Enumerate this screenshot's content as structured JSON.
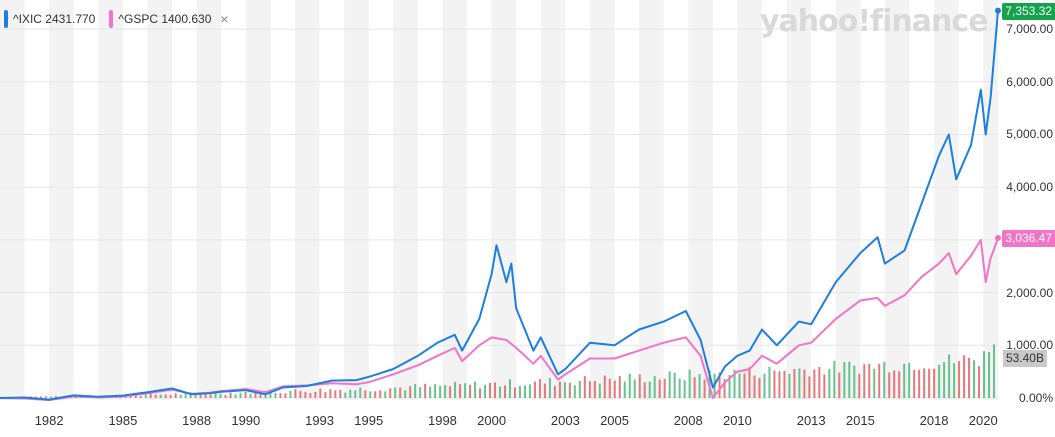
{
  "legend": [
    {
      "label": "^IXIC 2431.770",
      "color": "#1c7fe0"
    },
    {
      "label": "^GSPC 1400.630",
      "color": "#f274c8"
    }
  ],
  "legend_close": "×",
  "watermark": "yahoo!finance",
  "last_values": {
    "ixic": {
      "text": "7,353.32",
      "color": "#14a34a"
    },
    "gspc": {
      "text": "3,036.47",
      "color": "#f274c8"
    },
    "volume": {
      "text": "53.40B"
    }
  },
  "chart_data": {
    "type": "line",
    "ylim": [
      0,
      7400
    ],
    "xlim": [
      1980.0,
      2020.6
    ],
    "y_ticks": [
      "7,000.00",
      "6,000.00",
      "5,000.00",
      "4,000.00",
      "3,000.00",
      "2,000.00",
      "1,000.00",
      "0.00%"
    ],
    "y_tick_values": [
      7000,
      6000,
      5000,
      4000,
      3000,
      2000,
      1000,
      0
    ],
    "x_ticks": [
      {
        "label": "1982",
        "x": 1982
      },
      {
        "label": "1985",
        "x": 1985
      },
      {
        "label": "1988",
        "x": 1988
      },
      {
        "label": "1990",
        "x": 1990
      },
      {
        "label": "1993",
        "x": 1993
      },
      {
        "label": "1995",
        "x": 1995
      },
      {
        "label": "1998",
        "x": 1998
      },
      {
        "label": "2000",
        "x": 2000
      },
      {
        "label": "2003",
        "x": 2003
      },
      {
        "label": "2005",
        "x": 2005
      },
      {
        "label": "2008",
        "x": 2008
      },
      {
        "label": "2010",
        "x": 2010
      },
      {
        "label": "2013",
        "x": 2013
      },
      {
        "label": "2015",
        "x": 2015
      },
      {
        "label": "2018",
        "x": 2018
      },
      {
        "label": "2020",
        "x": 2020
      }
    ],
    "grid": true,
    "series": [
      {
        "name": "^IXIC",
        "color": "#1c7fe0",
        "points": [
          [
            1980.0,
            0
          ],
          [
            1981.0,
            10
          ],
          [
            1982.0,
            -30
          ],
          [
            1983.0,
            50
          ],
          [
            1984.0,
            25
          ],
          [
            1985.0,
            45
          ],
          [
            1986.0,
            110
          ],
          [
            1987.0,
            180
          ],
          [
            1987.8,
            70
          ],
          [
            1988.5,
            90
          ],
          [
            1989.0,
            120
          ],
          [
            1990.0,
            150
          ],
          [
            1990.8,
            70
          ],
          [
            1991.5,
            200
          ],
          [
            1992.5,
            230
          ],
          [
            1993.5,
            330
          ],
          [
            1994.5,
            340
          ],
          [
            1995.0,
            400
          ],
          [
            1996.0,
            550
          ],
          [
            1997.0,
            800
          ],
          [
            1997.8,
            1050
          ],
          [
            1998.5,
            1200
          ],
          [
            1998.8,
            900
          ],
          [
            1999.5,
            1500
          ],
          [
            2000.0,
            2350
          ],
          [
            2000.2,
            2900
          ],
          [
            2000.6,
            2200
          ],
          [
            2000.8,
            2550
          ],
          [
            2001.0,
            1700
          ],
          [
            2001.7,
            900
          ],
          [
            2002.0,
            1150
          ],
          [
            2002.7,
            450
          ],
          [
            2003.0,
            550
          ],
          [
            2004.0,
            1050
          ],
          [
            2005.0,
            1000
          ],
          [
            2006.0,
            1300
          ],
          [
            2007.0,
            1450
          ],
          [
            2007.9,
            1650
          ],
          [
            2008.5,
            1100
          ],
          [
            2009.0,
            200
          ],
          [
            2009.5,
            600
          ],
          [
            2010.0,
            800
          ],
          [
            2010.5,
            900
          ],
          [
            2011.0,
            1300
          ],
          [
            2011.6,
            1000
          ],
          [
            2012.5,
            1450
          ],
          [
            2013.0,
            1400
          ],
          [
            2014.0,
            2200
          ],
          [
            2015.0,
            2750
          ],
          [
            2015.7,
            3050
          ],
          [
            2016.0,
            2550
          ],
          [
            2016.8,
            2800
          ],
          [
            2017.5,
            3700
          ],
          [
            2018.2,
            4600
          ],
          [
            2018.6,
            5000
          ],
          [
            2018.9,
            4150
          ],
          [
            2019.5,
            4800
          ],
          [
            2019.9,
            5850
          ],
          [
            2020.1,
            5000
          ],
          [
            2020.3,
            5700
          ],
          [
            2020.6,
            7350
          ]
        ]
      },
      {
        "name": "^GSPC",
        "color": "#f274c8",
        "points": [
          [
            1980.0,
            0
          ],
          [
            1981.0,
            -10
          ],
          [
            1982.0,
            -40
          ],
          [
            1983.0,
            30
          ],
          [
            1984.0,
            10
          ],
          [
            1985.0,
            30
          ],
          [
            1986.0,
            90
          ],
          [
            1987.0,
            160
          ],
          [
            1987.8,
            80
          ],
          [
            1988.5,
            100
          ],
          [
            1989.0,
            130
          ],
          [
            1990.0,
            170
          ],
          [
            1990.8,
            110
          ],
          [
            1991.5,
            220
          ],
          [
            1992.5,
            240
          ],
          [
            1993.5,
            280
          ],
          [
            1994.5,
            260
          ],
          [
            1995.0,
            300
          ],
          [
            1996.0,
            450
          ],
          [
            1997.0,
            620
          ],
          [
            1997.8,
            800
          ],
          [
            1998.5,
            950
          ],
          [
            1998.8,
            700
          ],
          [
            1999.5,
            1000
          ],
          [
            2000.0,
            1150
          ],
          [
            2000.6,
            1100
          ],
          [
            2001.0,
            950
          ],
          [
            2001.7,
            650
          ],
          [
            2002.0,
            800
          ],
          [
            2002.7,
            350
          ],
          [
            2003.0,
            450
          ],
          [
            2004.0,
            750
          ],
          [
            2005.0,
            750
          ],
          [
            2006.0,
            900
          ],
          [
            2007.0,
            1050
          ],
          [
            2007.9,
            1150
          ],
          [
            2008.5,
            800
          ],
          [
            2009.0,
            0
          ],
          [
            2009.5,
            300
          ],
          [
            2010.0,
            500
          ],
          [
            2010.5,
            550
          ],
          [
            2011.0,
            800
          ],
          [
            2011.6,
            650
          ],
          [
            2012.5,
            1000
          ],
          [
            2013.0,
            1050
          ],
          [
            2014.0,
            1500
          ],
          [
            2015.0,
            1850
          ],
          [
            2015.7,
            1900
          ],
          [
            2016.0,
            1750
          ],
          [
            2016.8,
            1950
          ],
          [
            2017.5,
            2300
          ],
          [
            2018.2,
            2550
          ],
          [
            2018.6,
            2750
          ],
          [
            2018.9,
            2350
          ],
          [
            2019.5,
            2700
          ],
          [
            2019.9,
            3000
          ],
          [
            2020.1,
            2200
          ],
          [
            2020.3,
            2650
          ],
          [
            2020.6,
            3036
          ]
        ]
      }
    ],
    "volume": {
      "colors": [
        "#4cb87a",
        "#e06060"
      ],
      "max_billion": 53.4
    }
  }
}
